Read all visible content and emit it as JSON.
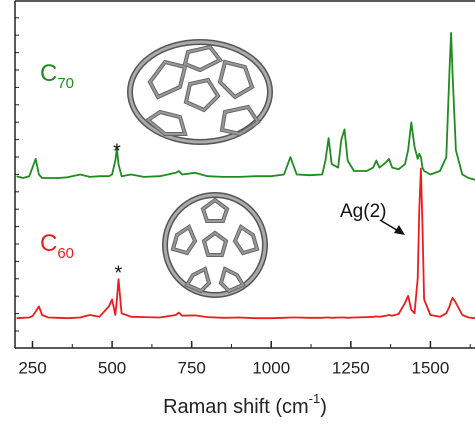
{
  "chart_data": {
    "type": "line",
    "x_label": {
      "text": "Raman shift (cm",
      "superscript": "-1",
      "suffix": ")"
    },
    "x": [
      200,
      220,
      240,
      250,
      260,
      270,
      280,
      300,
      330,
      360,
      400,
      430,
      460,
      490,
      500,
      510,
      515,
      520,
      530,
      560,
      600,
      650,
      700,
      710,
      720,
      760,
      800,
      850,
      900,
      950,
      1000,
      1040,
      1060,
      1080,
      1120,
      1160,
      1170,
      1180,
      1190,
      1210,
      1220,
      1230,
      1240,
      1260,
      1300,
      1320,
      1330,
      1340,
      1360,
      1370,
      1380,
      1400,
      1420,
      1430,
      1440,
      1450,
      1460,
      1465,
      1470,
      1475,
      1480,
      1500,
      1530,
      1550,
      1560,
      1565,
      1570,
      1580,
      1600,
      1620,
      1640
    ],
    "series": [
      {
        "name": "C",
        "name_subscript": "70",
        "color": "#1f8c1f",
        "values": [
          49.5,
          49,
          49.5,
          52,
          54.5,
          50,
          49,
          49,
          49,
          49.2,
          50,
          49.3,
          49.5,
          49.5,
          50,
          54,
          57.5,
          53,
          49.5,
          50,
          49.3,
          49.5,
          50.5,
          51,
          50,
          50.5,
          49.5,
          49.3,
          49.3,
          49.5,
          49.5,
          50,
          55,
          50,
          49.8,
          50,
          54,
          60.5,
          53,
          52,
          60,
          63,
          54,
          51,
          51,
          52,
          54,
          52,
          53.5,
          54.5,
          52,
          51.5,
          53,
          57,
          65,
          58,
          54.5,
          56,
          55,
          52,
          51,
          50,
          51,
          55,
          80,
          90.8,
          78,
          57,
          50,
          49,
          48.5
        ]
      },
      {
        "name": "C",
        "name_subscript": "60",
        "color": "#ee1c1c",
        "values": [
          8.6,
          8.7,
          8.8,
          9.2,
          10.5,
          12,
          9.5,
          8.8,
          8.7,
          8.6,
          8.8,
          9.5,
          9,
          12,
          14,
          9.5,
          14,
          19.8,
          10,
          9,
          8.9,
          8.8,
          9.5,
          10.2,
          9.3,
          9.4,
          8.9,
          8.7,
          8.8,
          8.6,
          8.6,
          8.7,
          8.8,
          8.8,
          8.7,
          8.7,
          8.8,
          8.8,
          8.7,
          8.8,
          8.8,
          8.8,
          8.7,
          8.8,
          8.9,
          9,
          9.1,
          9,
          9.3,
          9.5,
          9.3,
          9.8,
          13,
          15,
          11,
          10,
          20,
          40,
          51.7,
          35,
          14,
          9.5,
          9,
          10,
          12,
          13.5,
          14.4,
          13,
          9.5,
          8.8,
          8.6
        ]
      }
    ],
    "annotations": [
      "*",
      "*",
      "Ag(2)"
    ],
    "xlim": [
      195,
      1640
    ],
    "ylim": [
      0,
      100
    ],
    "xticks": [
      250,
      500,
      750,
      1000,
      1250,
      1500
    ],
    "minor_xticks": [
      375,
      625,
      875,
      1125,
      1375,
      1625
    ]
  }
}
